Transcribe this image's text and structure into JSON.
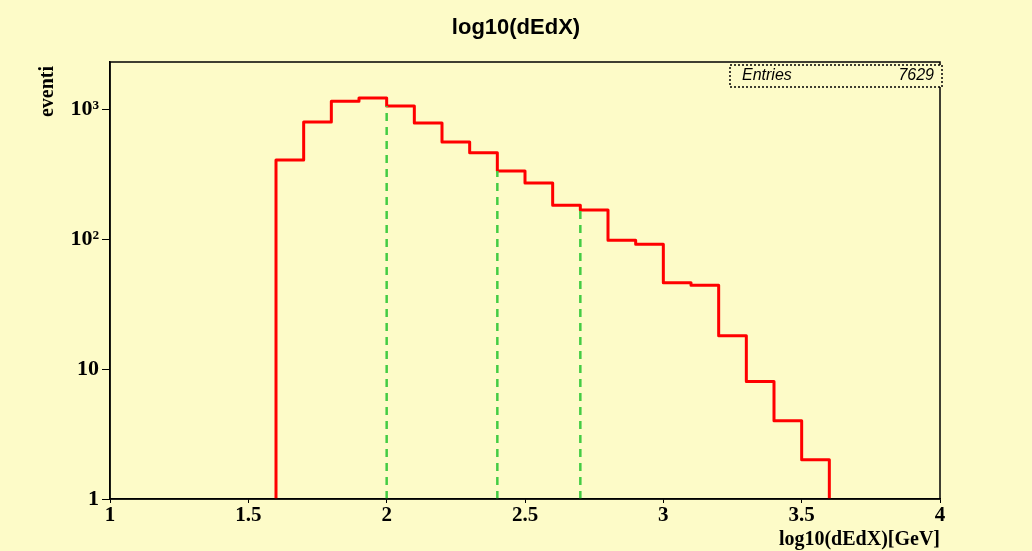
{
  "chart_data": {
    "type": "histogram",
    "title": "log10(dEdX)",
    "xlabel": "log10(dEdX)[GeV]",
    "ylabel": "eventi",
    "bins": [
      1.6,
      1.7,
      1.8,
      1.9,
      2.0,
      2.1,
      2.2,
      2.3,
      2.4,
      2.5,
      2.6,
      2.7,
      2.8,
      2.9,
      3.0,
      3.1,
      3.2,
      3.3,
      3.4,
      3.5,
      3.6
    ],
    "values": [
      405,
      795,
      1150,
      1215,
      1055,
      780,
      557,
      460,
      333,
      270,
      182,
      167,
      98,
      91,
      46,
      44,
      18,
      8,
      4,
      2
    ],
    "color": "#ff0000",
    "xlim": [
      1,
      4
    ],
    "xticks": [
      1,
      1.5,
      2,
      2.5,
      3,
      3.5,
      4
    ],
    "ylim": [
      1,
      2300
    ],
    "yticks": [
      1,
      10,
      {
        "value": 100,
        "label": "10²"
      },
      {
        "value": 1000,
        "label": "10³"
      }
    ],
    "log": "y",
    "grid": false,
    "legend": false,
    "ref_lines": [
      {
        "axis": "x",
        "value": 2,
        "color": "#44cc44",
        "line_style": "dashed"
      },
      {
        "axis": "x",
        "value": 2.4,
        "color": "#44cc44",
        "line_style": "dashed"
      },
      {
        "axis": "x",
        "value": 2.7,
        "color": "#44cc44",
        "line_style": "dashed"
      }
    ],
    "annotations": [
      "Entries",
      "7629"
    ]
  }
}
